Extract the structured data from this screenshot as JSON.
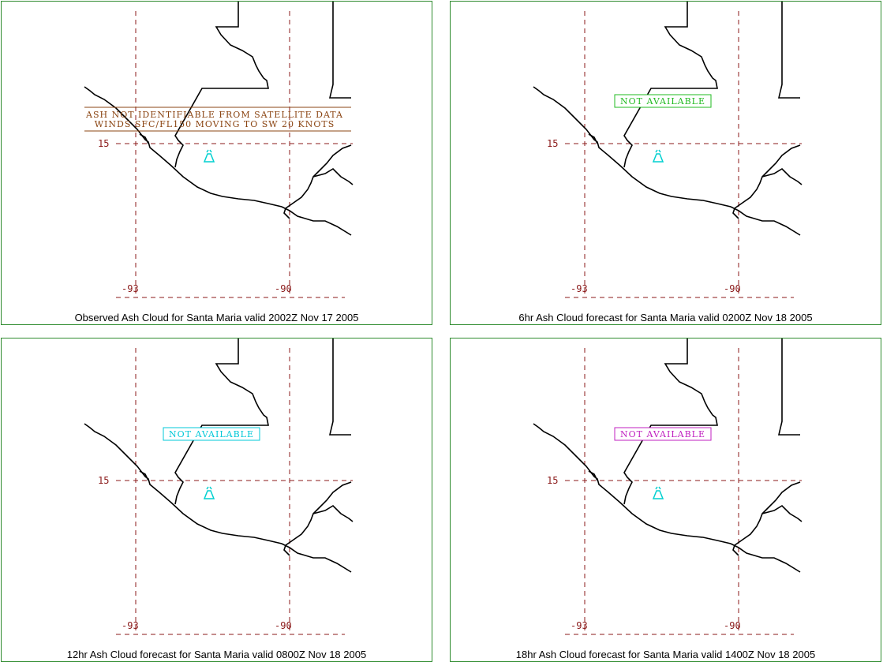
{
  "panels": [
    {
      "caption": "Observed Ash Cloud for Santa  Maria valid 2002Z Nov 17 2005",
      "lat_label": "15",
      "lon_labels": [
        "-93",
        "-90"
      ],
      "box_lines": [
        "ASH NOT IDENTIFIABLE FROM SATELLITE DATA",
        "WINDS SFC/FL150 MOVING TO SW 20 KNOTS"
      ],
      "box_color": "#8b4513"
    },
    {
      "caption": "6hr Ash Cloud forecast for Santa  Maria valid 0200Z Nov 18 2005",
      "lat_label": "15",
      "lon_labels": [
        "-93",
        "-90"
      ],
      "box_lines": [
        "NOT AVAILABLE"
      ],
      "box_color": "#22bb22"
    },
    {
      "caption": "12hr Ash Cloud forecast for Santa  Maria valid 0800Z Nov 18 2005",
      "lat_label": "15",
      "lon_labels": [
        "-93",
        "-90"
      ],
      "box_lines": [
        "NOT AVAILABLE"
      ],
      "box_color": "#00c8d8"
    },
    {
      "caption": "18hr Ash Cloud forecast for Santa  Maria valid 1400Z Nov 18 2005",
      "lat_label": "15",
      "lon_labels": [
        "-93",
        "-90"
      ],
      "box_lines": [
        "NOT AVAILABLE"
      ],
      "box_color": "#c020c0"
    }
  ],
  "volcano_icon": "volcano-icon",
  "volcano_color": "#00d0d0",
  "grid_color": "#8b1a1a",
  "border_color": "#2e8b2e"
}
